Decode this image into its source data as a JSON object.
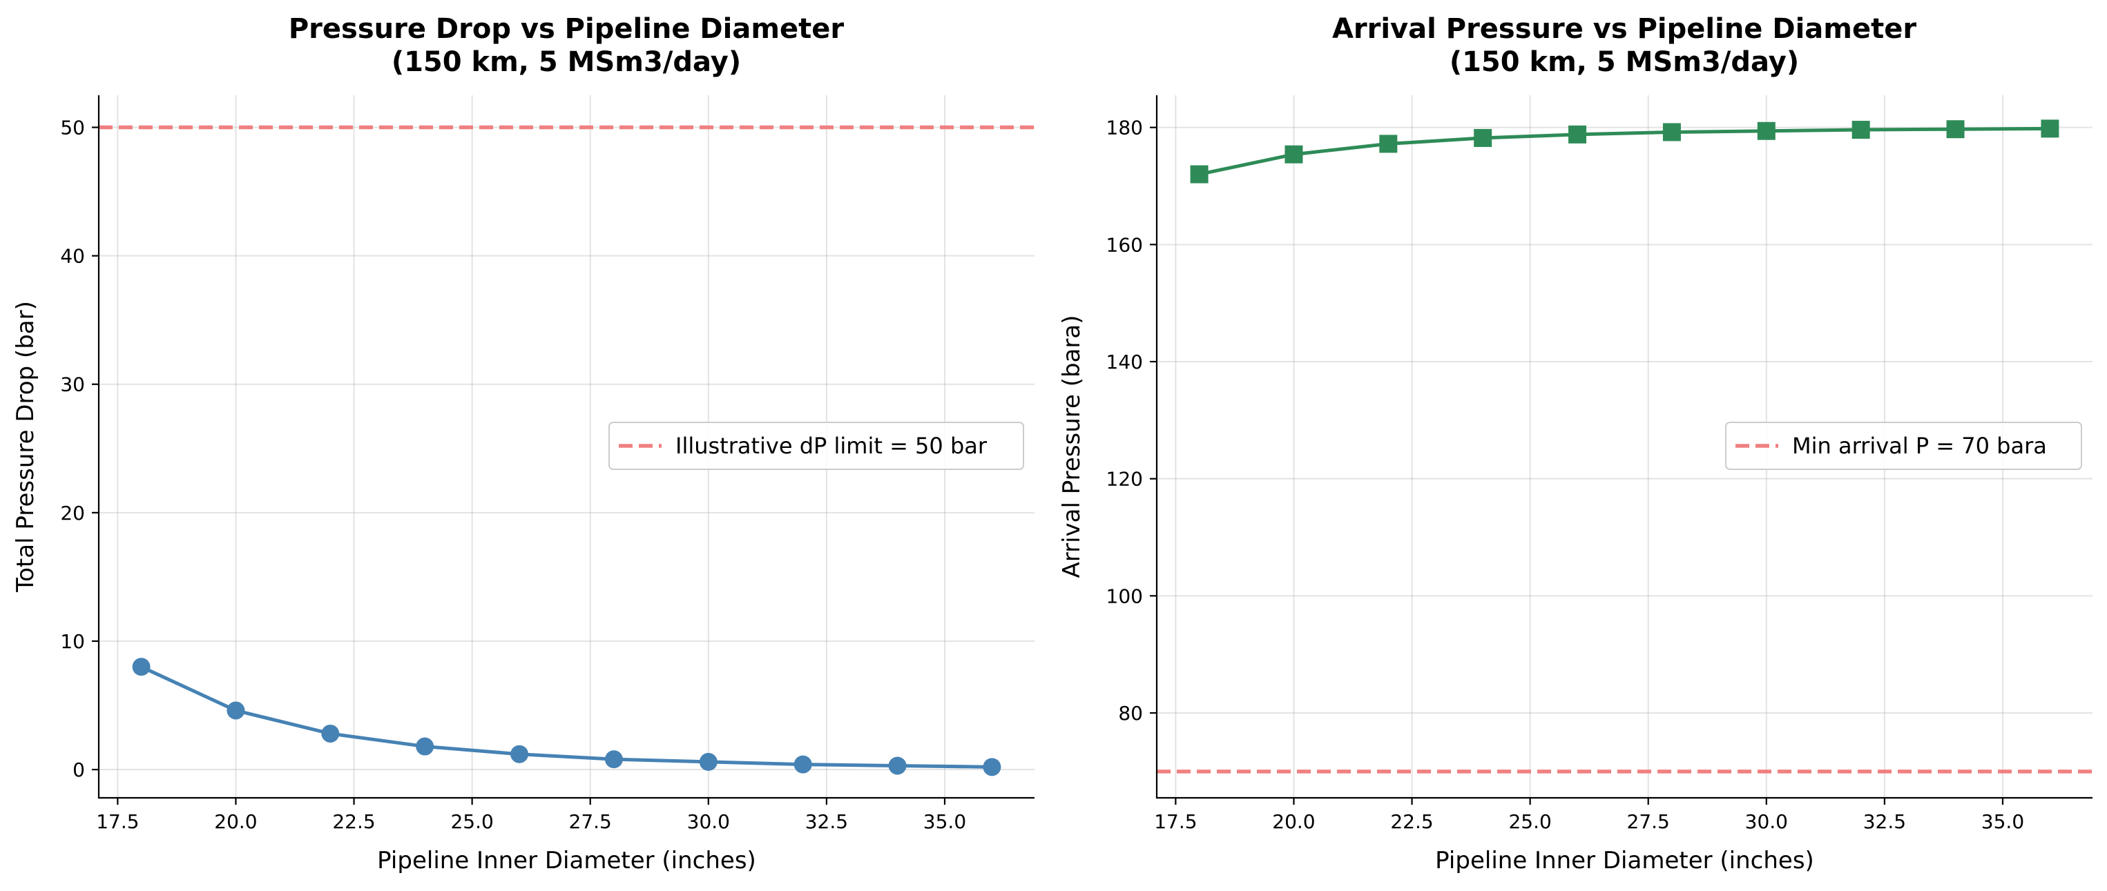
{
  "chart_data": [
    {
      "type": "line",
      "title": [
        "Pressure Drop vs Pipeline Diameter",
        "(150 km, 5 MSm3/day)"
      ],
      "xlabel": "Pipeline Inner Diameter (inches)",
      "ylabel": "Total Pressure Drop (bar)",
      "xlim": [
        17.1,
        36.9
      ],
      "ylim": [
        -2.2,
        52.5
      ],
      "xticks": [
        17.5,
        20.0,
        22.5,
        25.0,
        27.5,
        30.0,
        32.5,
        35.0
      ],
      "xtick_labels": [
        "17.5",
        "20.0",
        "22.5",
        "25.0",
        "27.5",
        "30.0",
        "32.5",
        "35.0"
      ],
      "yticks": [
        0,
        10,
        20,
        30,
        40,
        50
      ],
      "ytick_labels": [
        "0",
        "10",
        "20",
        "30",
        "40",
        "50"
      ],
      "grid": true,
      "series": [
        {
          "x": [
            18,
            20,
            22,
            24,
            26,
            28,
            30,
            32,
            34,
            36
          ],
          "values": [
            8.0,
            4.6,
            2.8,
            1.8,
            1.2,
            0.8,
            0.6,
            0.4,
            0.3,
            0.2
          ],
          "color": "#4682b4",
          "marker": "circle"
        }
      ],
      "reference_lines": [
        {
          "y": 50,
          "label": "Illustrative dP limit = 50 bar",
          "color": "#f08080",
          "style": "dashed"
        }
      ],
      "legend_position": "center-right"
    },
    {
      "type": "line",
      "title": [
        "Arrival Pressure vs Pipeline Diameter",
        "(150 km, 5 MSm3/day)"
      ],
      "xlabel": "Pipeline Inner Diameter (inches)",
      "ylabel": "Arrival Pressure (bara)",
      "xlim": [
        17.1,
        36.9
      ],
      "ylim": [
        65.5,
        185.5
      ],
      "xticks": [
        17.5,
        20.0,
        22.5,
        25.0,
        27.5,
        30.0,
        32.5,
        35.0
      ],
      "xtick_labels": [
        "17.5",
        "20.0",
        "22.5",
        "25.0",
        "27.5",
        "30.0",
        "32.5",
        "35.0"
      ],
      "yticks": [
        80,
        100,
        120,
        140,
        160,
        180
      ],
      "ytick_labels": [
        "80",
        "100",
        "120",
        "140",
        "160",
        "180"
      ],
      "grid": true,
      "series": [
        {
          "x": [
            18,
            20,
            22,
            24,
            26,
            28,
            30,
            32,
            34,
            36
          ],
          "values": [
            172.0,
            175.4,
            177.2,
            178.2,
            178.8,
            179.2,
            179.4,
            179.6,
            179.7,
            179.8
          ],
          "color": "#2e8b57",
          "marker": "square"
        }
      ],
      "reference_lines": [
        {
          "y": 70,
          "label": "Min arrival P = 70 bara",
          "color": "#f08080",
          "style": "dashed"
        }
      ],
      "legend_position": "center-right"
    }
  ]
}
